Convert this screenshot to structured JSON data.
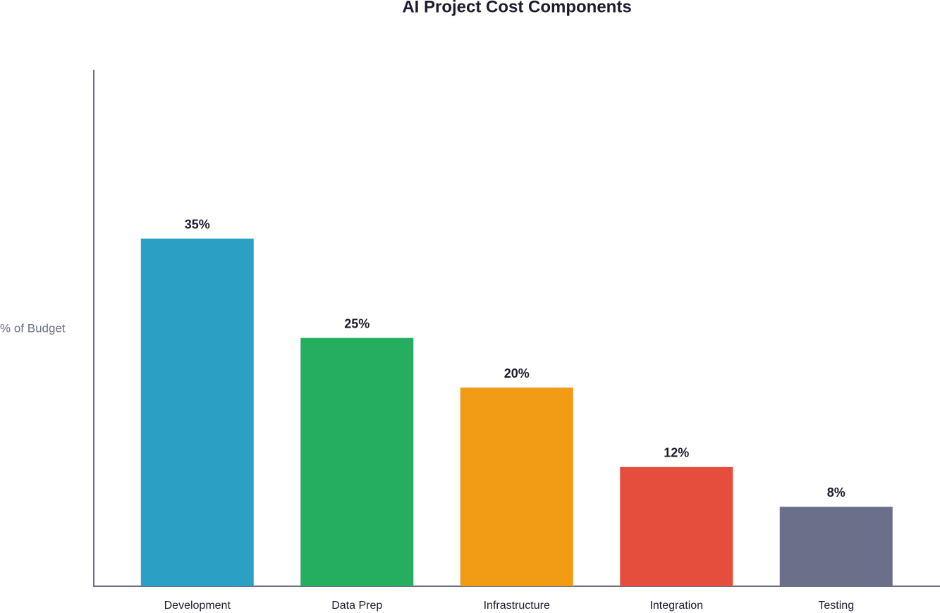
{
  "chart_data": {
    "type": "bar",
    "title": "AI Project Cost Components",
    "y_label": "% of Budget",
    "categories": [
      "Development",
      "Data Prep",
      "Infrastructure",
      "Integration",
      "Testing"
    ],
    "values": [
      35,
      25,
      20,
      12,
      8
    ],
    "value_labels": [
      "35%",
      "25%",
      "20%",
      "12%",
      "8%"
    ],
    "colors": [
      "#2b9fc4",
      "#26ae60",
      "#f19c14",
      "#e54e3d",
      "#6c6f8a"
    ],
    "ylim": [
      0,
      52
    ]
  }
}
